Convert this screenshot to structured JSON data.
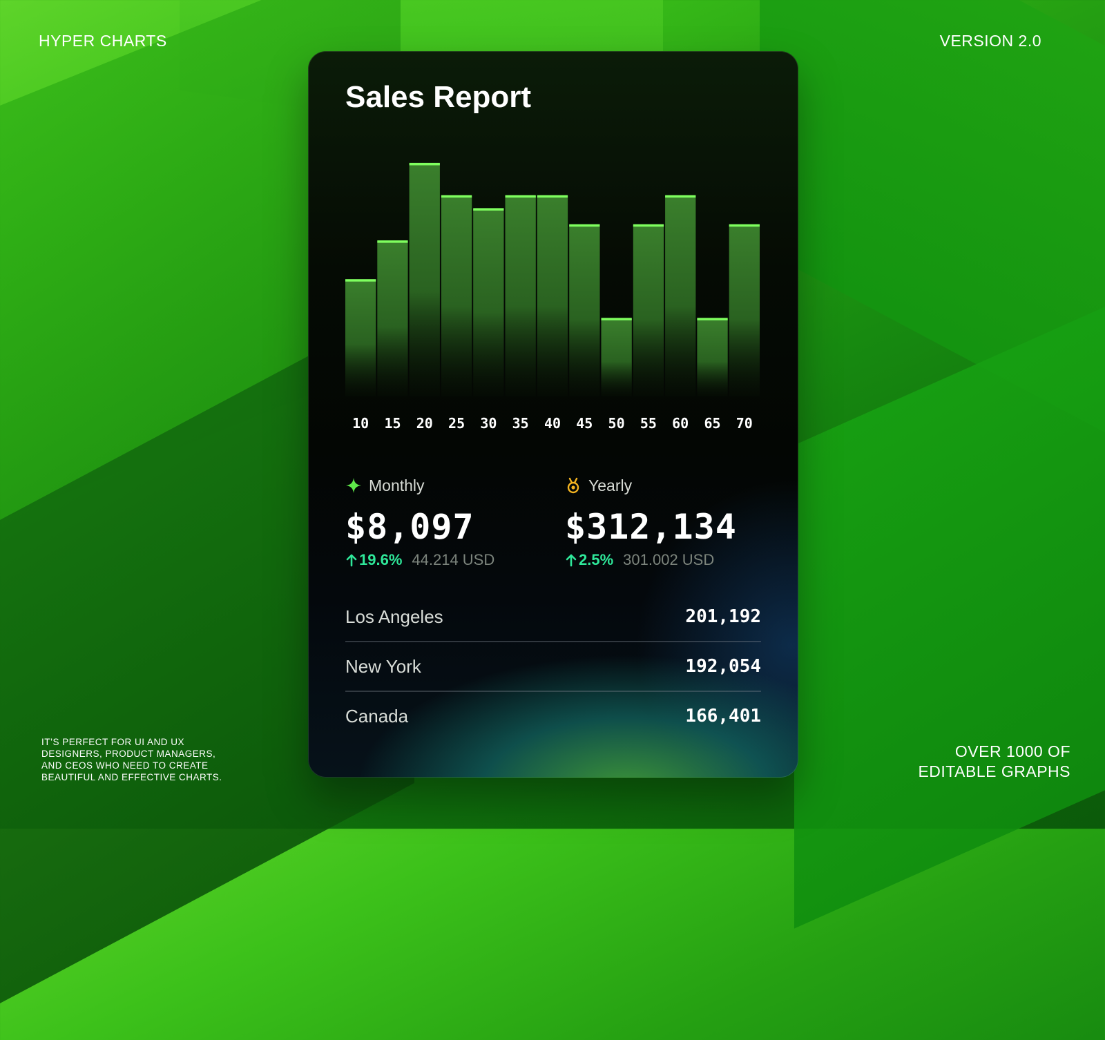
{
  "header": {
    "brand": "HYPER CHARTS",
    "version": "VERSION 2.0"
  },
  "footer": {
    "tagline": "IT’S PERFECT FOR UI AND UX DESIGNERS, PRODUCT MANAGERS, AND CEOS WHO NEED TO CREATE BEAUTIFUL AND EFFECTIVE CHARTS.",
    "promo_line1": "OVER 1000 OF",
    "promo_line2": "EDITABLE GRAPHS"
  },
  "card": {
    "title": "Sales Report"
  },
  "chart_data": {
    "type": "bar",
    "title": "Sales Report",
    "xlabel": "",
    "ylabel": "",
    "categories": [
      "10",
      "15",
      "20",
      "25",
      "30",
      "35",
      "40",
      "45",
      "50",
      "55",
      "60",
      "65",
      "70"
    ],
    "values": [
      36,
      48,
      72,
      62,
      58,
      62,
      62,
      53,
      24,
      53,
      62,
      24,
      53
    ],
    "ylim": [
      0,
      80
    ],
    "grid": false,
    "legend": "none",
    "colors": {
      "bar": "#2f6f24",
      "bar_top": "#7fff5f",
      "label": "#ffffff"
    }
  },
  "stats": {
    "monthly": {
      "icon": "sparkle-icon",
      "label": "Monthly",
      "value": "$8,097",
      "delta": "19.6%",
      "usd": "44.214 USD",
      "icon_color": "#5fe84a"
    },
    "yearly": {
      "icon": "medal-icon",
      "label": "Yearly",
      "value": "$312,134",
      "delta": "2.5%",
      "usd": "301.002 USD",
      "icon_color": "#f5b521"
    }
  },
  "locations": [
    {
      "name": "Los Angeles",
      "value": "201,192"
    },
    {
      "name": "New York",
      "value": "192,054"
    },
    {
      "name": "Canada",
      "value": "166,401"
    }
  ],
  "accent": {
    "positive": "#2fe89a"
  }
}
